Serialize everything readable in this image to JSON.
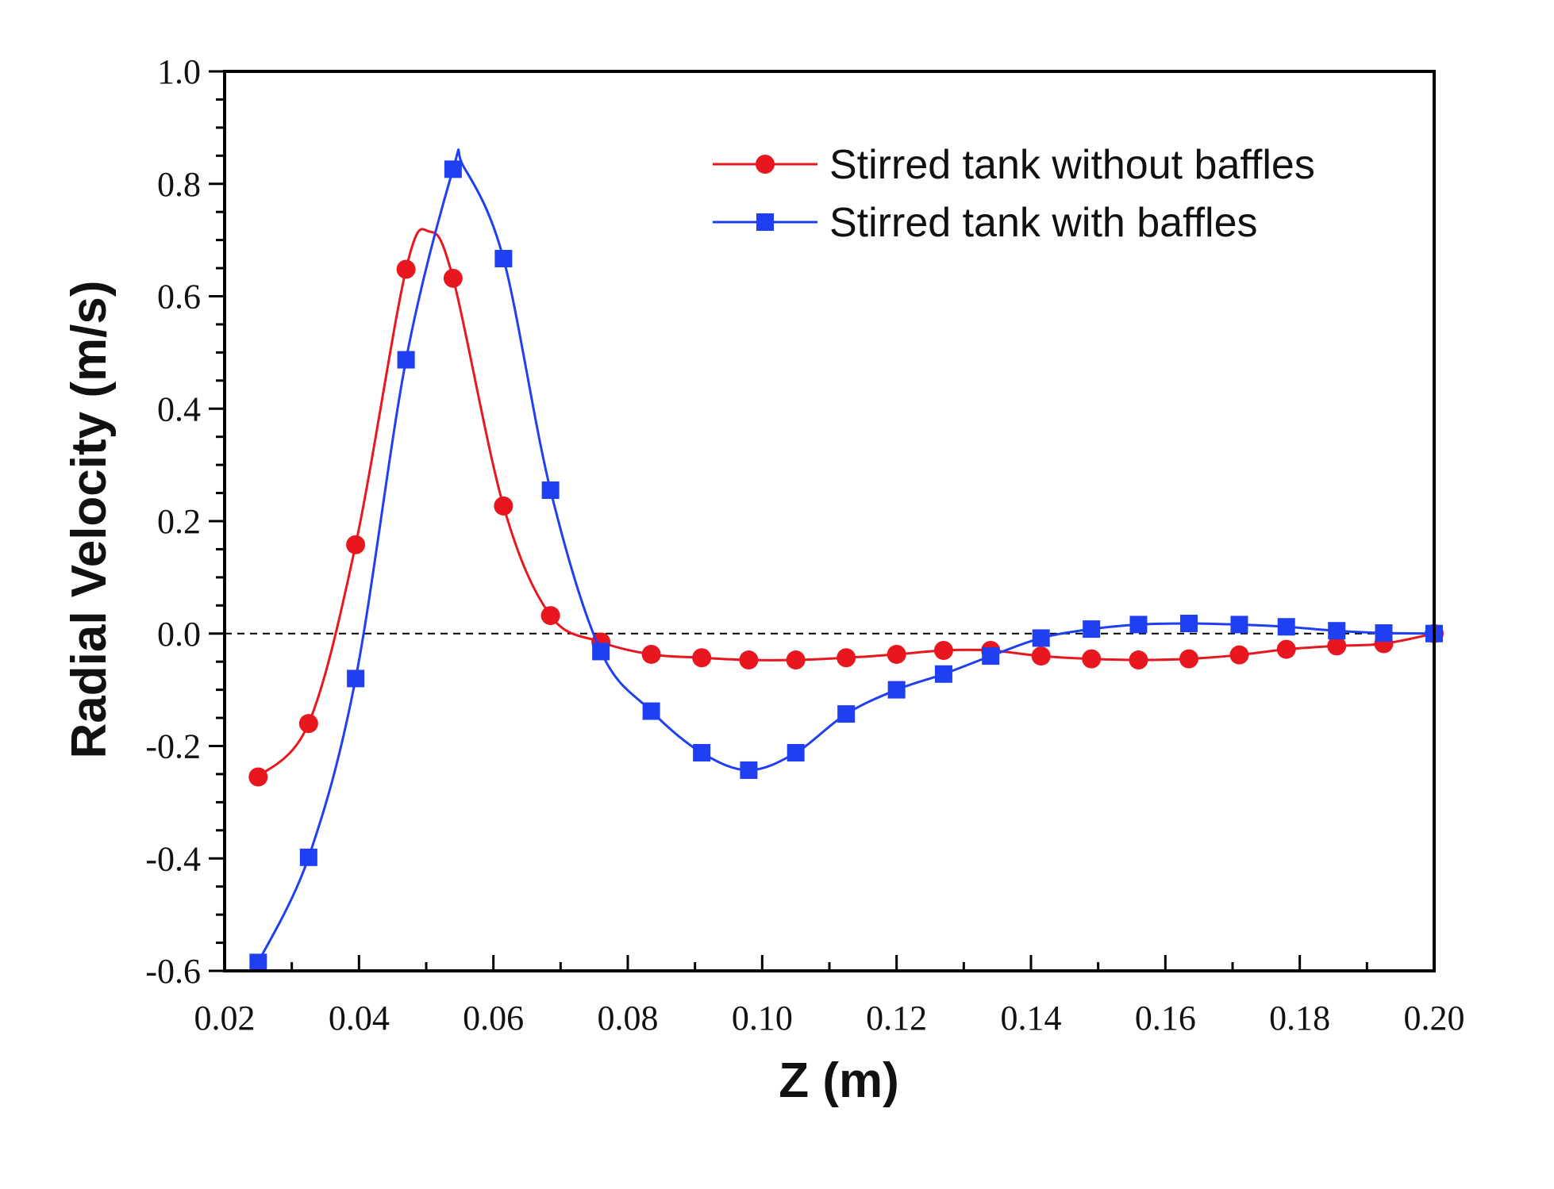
{
  "chart_data": {
    "type": "line",
    "title": "",
    "xlabel": "Z (m)",
    "ylabel": "Radial Velocity (m/s)",
    "xlim": [
      0.02,
      0.2
    ],
    "ylim": [
      -0.6,
      1.0
    ],
    "x_ticks": [
      "0.02",
      "0.04",
      "0.06",
      "0.08",
      "0.10",
      "0.12",
      "0.14",
      "0.16",
      "0.18",
      "0.20"
    ],
    "y_ticks": [
      "-0.6",
      "-0.4",
      "-0.2",
      "0.0",
      "0.2",
      "0.4",
      "0.6",
      "0.8",
      "1.0"
    ],
    "x_tick_values": [
      0.02,
      0.04,
      0.06,
      0.08,
      0.1,
      0.12,
      0.14,
      0.16,
      0.18,
      0.2
    ],
    "y_tick_values": [
      -0.6,
      -0.4,
      -0.2,
      0.0,
      0.2,
      0.4,
      0.6,
      0.8,
      1.0
    ],
    "reference_line": {
      "y": 0.0,
      "style": "dashed",
      "color": "#000000"
    },
    "legend_position": "top-right",
    "grid": false,
    "series": [
      {
        "name": "Stirred tank without baffles",
        "color": "#e8171f",
        "marker": "circle",
        "x": [
          0.025,
          0.0325,
          0.0395,
          0.047,
          0.054,
          0.0615,
          0.0685,
          0.076,
          0.0835,
          0.091,
          0.098,
          0.105,
          0.1125,
          0.12,
          0.127,
          0.134,
          0.1415,
          0.149,
          0.156,
          0.1635,
          0.171,
          0.178,
          0.1855,
          0.1925,
          0.2
        ],
        "values": [
          -0.255,
          -0.16,
          0.158,
          0.648,
          0.632,
          0.227,
          0.032,
          -0.015,
          -0.037,
          -0.043,
          -0.047,
          -0.047,
          -0.043,
          -0.037,
          -0.03,
          -0.03,
          -0.04,
          -0.045,
          -0.047,
          -0.045,
          -0.038,
          -0.028,
          -0.022,
          -0.018,
          0.0
        ],
        "curve": [
          [
            0.025,
            -0.255
          ],
          [
            0.0325,
            -0.16
          ],
          [
            0.0395,
            0.158
          ],
          [
            0.047,
            0.648
          ],
          [
            0.0505,
            0.715
          ],
          [
            0.054,
            0.632
          ],
          [
            0.0615,
            0.227
          ],
          [
            0.0685,
            0.032
          ],
          [
            0.076,
            -0.015
          ],
          [
            0.0835,
            -0.037
          ],
          [
            0.091,
            -0.043
          ],
          [
            0.098,
            -0.047
          ],
          [
            0.105,
            -0.047
          ],
          [
            0.1125,
            -0.043
          ],
          [
            0.12,
            -0.037
          ],
          [
            0.127,
            -0.03
          ],
          [
            0.134,
            -0.03
          ],
          [
            0.1415,
            -0.04
          ],
          [
            0.149,
            -0.045
          ],
          [
            0.156,
            -0.047
          ],
          [
            0.1635,
            -0.045
          ],
          [
            0.171,
            -0.038
          ],
          [
            0.178,
            -0.028
          ],
          [
            0.1855,
            -0.022
          ],
          [
            0.1925,
            -0.018
          ],
          [
            0.2,
            0.0
          ]
        ]
      },
      {
        "name": "Stirred tank with baffles",
        "color": "#1f3ff0",
        "marker": "square",
        "x": [
          0.025,
          0.0325,
          0.0395,
          0.047,
          0.054,
          0.0615,
          0.0685,
          0.076,
          0.0835,
          0.091,
          0.098,
          0.105,
          0.1125,
          0.12,
          0.127,
          0.134,
          0.1415,
          0.149,
          0.156,
          0.1635,
          0.171,
          0.178,
          0.1855,
          0.1925,
          0.2
        ],
        "values": [
          -0.585,
          -0.398,
          -0.08,
          0.487,
          0.826,
          0.667,
          0.255,
          -0.032,
          -0.138,
          -0.212,
          -0.243,
          -0.212,
          -0.143,
          -0.1,
          -0.072,
          -0.04,
          -0.008,
          0.008,
          0.016,
          0.018,
          0.016,
          0.012,
          0.005,
          0.001,
          0.0
        ],
        "curve": [
          [
            0.025,
            -0.585
          ],
          [
            0.0325,
            -0.398
          ],
          [
            0.0395,
            -0.08
          ],
          [
            0.047,
            0.487
          ],
          [
            0.054,
            0.826
          ],
          [
            0.0555,
            0.832
          ],
          [
            0.0615,
            0.667
          ],
          [
            0.0685,
            0.255
          ],
          [
            0.076,
            -0.032
          ],
          [
            0.0835,
            -0.138
          ],
          [
            0.091,
            -0.212
          ],
          [
            0.098,
            -0.243
          ],
          [
            0.105,
            -0.212
          ],
          [
            0.1125,
            -0.143
          ],
          [
            0.12,
            -0.1
          ],
          [
            0.127,
            -0.072
          ],
          [
            0.134,
            -0.04
          ],
          [
            0.1415,
            -0.008
          ],
          [
            0.149,
            0.008
          ],
          [
            0.156,
            0.016
          ],
          [
            0.1635,
            0.018
          ],
          [
            0.171,
            0.016
          ],
          [
            0.178,
            0.012
          ],
          [
            0.1855,
            0.005
          ],
          [
            0.1925,
            0.001
          ],
          [
            0.2,
            0.0
          ]
        ]
      }
    ]
  }
}
